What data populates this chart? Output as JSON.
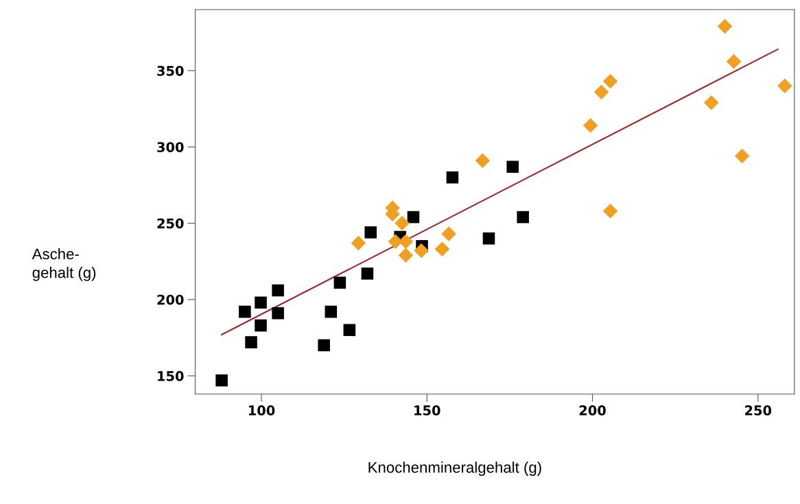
{
  "chart_data": {
    "type": "scatter",
    "xlabel": "Knochenmineralgehalt (g)",
    "ylabel": "Asche-\ngehalt (g)",
    "xlim": [
      80,
      261
    ],
    "ylim": [
      138,
      390
    ],
    "xticks": [
      100,
      150,
      200,
      250
    ],
    "yticks": [
      150,
      200,
      250,
      300,
      350
    ],
    "grid": false,
    "series": [
      {
        "color": "#000000",
        "marker": "square",
        "x": [
          88.0,
          95.0,
          96.9,
          99.8,
          99.8,
          105.0,
          105.0,
          118.9,
          121.0,
          123.7,
          126.6,
          132.0,
          133.0,
          141.9,
          145.9,
          148.5,
          157.7,
          168.7,
          175.9,
          179.0
        ],
        "values": [
          147,
          192,
          172,
          198,
          183,
          206,
          191,
          170,
          192,
          211,
          180,
          217,
          244,
          241,
          254,
          235,
          280,
          240,
          287,
          254
        ]
      },
      {
        "color": "#f0a020",
        "marker": "diamond",
        "x": [
          129.3,
          139.6,
          139.6,
          142.5,
          140.5,
          143.6,
          143.6,
          148.3,
          154.6,
          156.6,
          166.8,
          240.0,
          242.7,
          205.4,
          202.7,
          199.4,
          235.9,
          258.1,
          245.2,
          205.4
        ],
        "values": [
          237,
          260,
          256,
          250,
          238,
          238,
          229,
          232,
          233,
          243,
          291,
          379,
          356,
          343,
          336,
          314,
          329,
          340,
          294,
          258
        ]
      },
      {
        "type": "line",
        "color": "#a0282d",
        "marker": "none",
        "line_style": "solid",
        "x": [
          88,
          256
        ],
        "values": [
          177,
          364
        ]
      }
    ]
  }
}
